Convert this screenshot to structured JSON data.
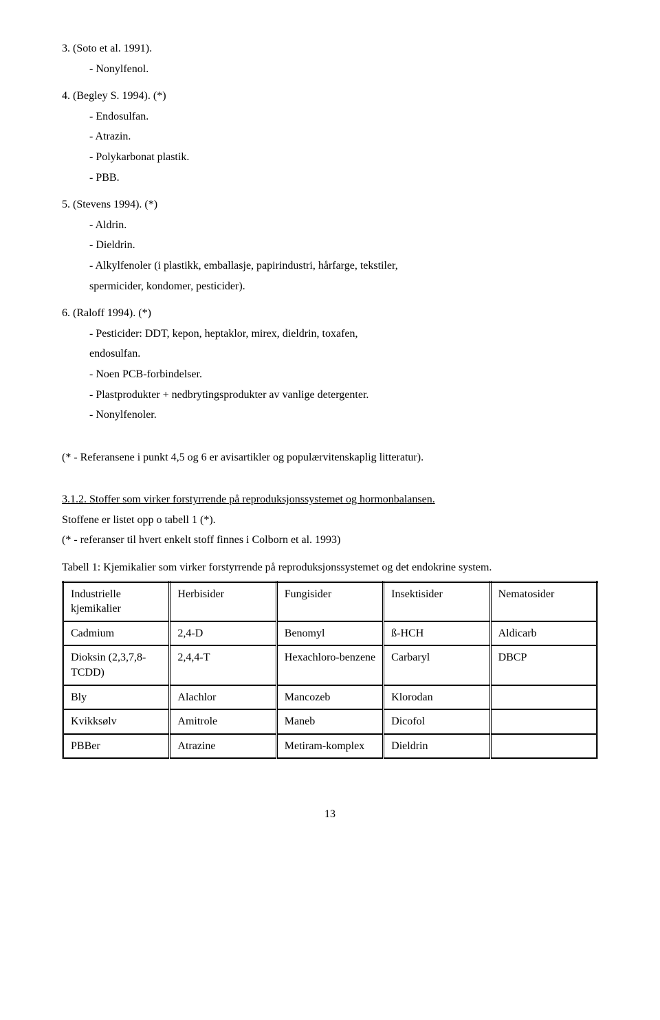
{
  "body": {
    "l1": "3. (Soto et al. 1991).",
    "l2": "- Nonylfenol.",
    "l3": "4. (Begley S. 1994). (*)",
    "l4": "- Endosulfan.",
    "l5": "- Atrazin.",
    "l6": "- Polykarbonat plastik.",
    "l7": "- PBB.",
    "l8": "5. (Stevens 1994). (*)",
    "l9": "- Aldrin.",
    "l10": "- Dieldrin.",
    "l11a": "- Alkylfenoler (i plastikk, emballasje, papirindustri, hårfarge, tekstiler,",
    "l11b": "spermicider, kondomer, pesticider).",
    "l12": "6. (Raloff 1994). (*)",
    "l13a": "- Pesticider: DDT, kepon, heptaklor, mirex, dieldrin, toxafen,",
    "l13b": "endosulfan.",
    "l14": "- Noen PCB-forbindelser.",
    "l15": "- Plastprodukter + nedbrytingsprodukter av vanlige detergenter.",
    "l16": "- Nonylfenoler.",
    "note1": "(* - Referansene i punkt 4,5 og 6 er avisartikler og populærvitenskaplig litteratur).",
    "head312": "3.1.2. Stoffer som virker forstyrrende på reproduksjonssystemet og hormonbalansen.",
    "p1": "Stoffene er listet opp o tabell 1 (*).",
    "p2": "(* - referanser til hvert enkelt stoff finnes i Colborn et al. 1993)",
    "tcaption": "Tabell 1: Kjemikalier som virker forstyrrende på reproduksjonssystemet og det endokrine system."
  },
  "table": {
    "r0": {
      "c0": "Industrielle kjemikalier",
      "c1": "Herbisider",
      "c2": "Fungisider",
      "c3": "Insektisider",
      "c4": "Nematosider"
    },
    "r1": {
      "c0": "Cadmium",
      "c1": "2,4-D",
      "c2": "Benomyl",
      "c3": "ß-HCH",
      "c4": "Aldicarb"
    },
    "r2": {
      "c0": "Dioksin (2,3,7,8-TCDD)",
      "c1": "2,4,4-T",
      "c2": "Hexachloro-benzene",
      "c3": "Carbaryl",
      "c4": "DBCP"
    },
    "r3": {
      "c0": "Bly",
      "c1": "Alachlor",
      "c2": "Mancozeb",
      "c3": "Klorodan",
      "c4": ""
    },
    "r4": {
      "c0": "Kvikksølv",
      "c1": "Amitrole",
      "c2": "Maneb",
      "c3": "Dicofol",
      "c4": ""
    },
    "r5": {
      "c0": "PBBer",
      "c1": "Atrazine",
      "c2": "Metiram-komplex",
      "c3": "Dieldrin",
      "c4": ""
    }
  },
  "pagenum": "13"
}
